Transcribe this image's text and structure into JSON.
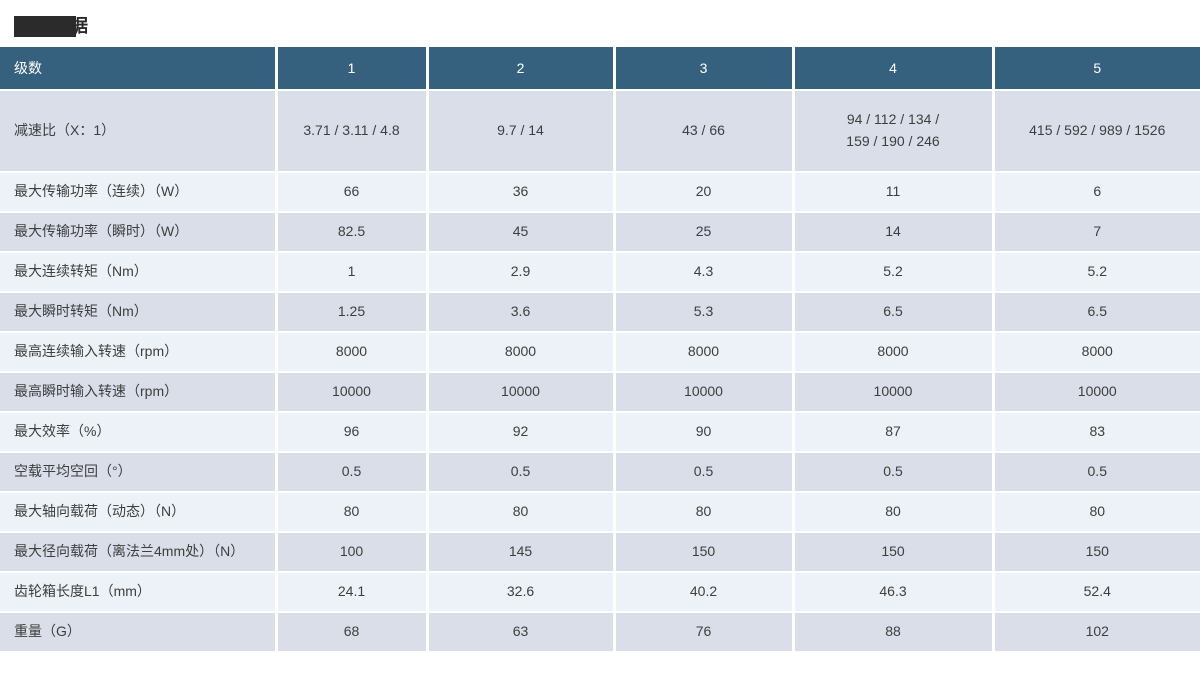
{
  "page": {
    "title": {
      "redacted": true,
      "visible_text": "据"
    }
  },
  "colors": {
    "header_bg": "#35617f",
    "header_text": "#ffffff",
    "row_dark_bg": "#d9dee8",
    "row_light_bg": "#edf1f8",
    "body_text": "#3e3e3e",
    "redaction": "#2b2b2b"
  },
  "table": {
    "header": {
      "row_label": "级数",
      "columns": [
        "1",
        "2",
        "3",
        "4",
        "5"
      ]
    },
    "rows": [
      {
        "label": "减速比（X：1）",
        "values": [
          "3.71 / 3.11 / 4.8",
          "9.7 / 14",
          "43 / 66",
          "94 / 112 / 134 /\n159 / 190 / 246",
          "415 / 592 / 989 / 1526"
        ]
      },
      {
        "label": "最大传输功率（连续）（W）",
        "values": [
          "66",
          "36",
          "20",
          "11",
          "6"
        ]
      },
      {
        "label": "最大传输功率（瞬时）（W）",
        "values": [
          "82.5",
          "45",
          "25",
          "14",
          "7"
        ]
      },
      {
        "label": "最大连续转矩（Nm）",
        "values": [
          "1",
          "2.9",
          "4.3",
          "5.2",
          "5.2"
        ]
      },
      {
        "label": "最大瞬时转矩（Nm）",
        "values": [
          "1.25",
          "3.6",
          "5.3",
          "6.5",
          "6.5"
        ]
      },
      {
        "label": "最高连续输入转速（rpm）",
        "values": [
          "8000",
          "8000",
          "8000",
          "8000",
          "8000"
        ]
      },
      {
        "label": "最高瞬时输入转速（rpm）",
        "values": [
          "10000",
          "10000",
          "10000",
          "10000",
          "10000"
        ]
      },
      {
        "label": "最大效率（%）",
        "values": [
          "96",
          "92",
          "90",
          "87",
          "83"
        ]
      },
      {
        "label": "空载平均空回（°）",
        "values": [
          "0.5",
          "0.5",
          "0.5",
          "0.5",
          "0.5"
        ]
      },
      {
        "label": "最大轴向载荷（动态）（N）",
        "values": [
          "80",
          "80",
          "80",
          "80",
          "80"
        ]
      },
      {
        "label": "最大径向载荷（离法兰4mm处）（N）",
        "values": [
          "100",
          "145",
          "150",
          "150",
          "150"
        ]
      },
      {
        "label": "齿轮箱长度L1（mm）",
        "values": [
          "24.1",
          "32.6",
          "40.2",
          "46.3",
          "52.4"
        ]
      },
      {
        "label": "重量（G）",
        "values": [
          "68",
          "63",
          "76",
          "88",
          "102"
        ]
      }
    ]
  }
}
